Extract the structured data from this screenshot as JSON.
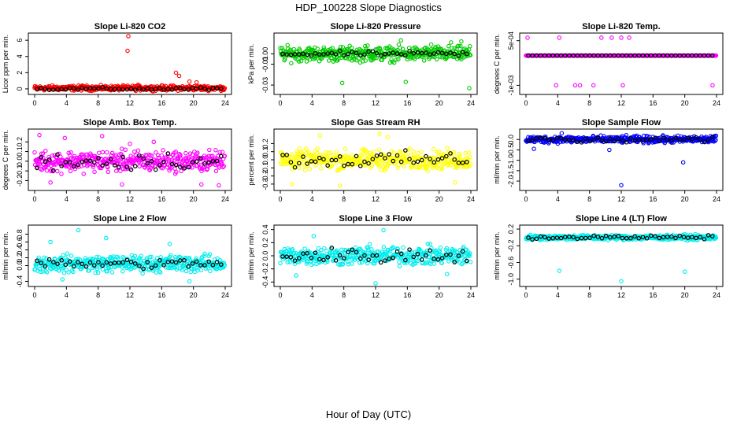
{
  "figure": {
    "title": "HDP_100228  Slope Diagnostics",
    "xlabel": "Hour of Day (UTC)"
  },
  "chart_data": [
    {
      "type": "scatter",
      "title": "Slope Li-820 CO2",
      "ylabel": "Licor ppm per min.",
      "color": "#ff0000",
      "xlim": [
        0,
        24
      ],
      "xticks": [
        0,
        4,
        8,
        12,
        16,
        20,
        24
      ],
      "ylim": [
        -0.3,
        6.5
      ],
      "yticks": [
        0,
        2,
        4,
        6
      ],
      "ytick_labels": [
        "0",
        "2",
        "4",
        "6"
      ],
      "noise": {
        "center": 0.1,
        "spread": 0.25
      },
      "highlights": [
        {
          "x": 11.8,
          "y": 6.6
        },
        {
          "x": 11.7,
          "y": 4.7
        },
        {
          "x": 17.8,
          "y": 2.0
        },
        {
          "x": 18.2,
          "y": 1.6
        },
        {
          "x": 19.5,
          "y": 0.9
        },
        {
          "x": 20.4,
          "y": 0.8
        },
        {
          "x": 13.0,
          "y": 0.5
        },
        {
          "x": 6.0,
          "y": 0.4
        }
      ],
      "black_noise": {
        "center": 0.0,
        "spread": 0.15
      }
    },
    {
      "type": "scatter",
      "title": "Slope Li-820 Pressure",
      "ylabel": "kPa per min.",
      "color": "#00cc00",
      "xlim": [
        0,
        24
      ],
      "xticks": [
        0,
        4,
        8,
        12,
        16,
        20,
        24
      ],
      "ylim": [
        -0.036,
        0.017
      ],
      "yticks": [
        0.0,
        -0.01,
        -0.03
      ],
      "ytick_labels": [
        "0.00",
        "-0.01",
        "-0.03"
      ],
      "noise": {
        "center": 0.0,
        "spread": 0.006
      },
      "highlights": [
        {
          "x": 7.8,
          "y": -0.028
        },
        {
          "x": 15.8,
          "y": -0.027
        },
        {
          "x": 23.8,
          "y": -0.033
        },
        {
          "x": 15.2,
          "y": 0.013
        },
        {
          "x": 21.5,
          "y": 0.011
        },
        {
          "x": 22.8,
          "y": 0.012
        },
        {
          "x": 19.0,
          "y": 0.009
        },
        {
          "x": 11.0,
          "y": 0.008
        }
      ],
      "black_noise": {
        "center": 0.0,
        "spread": 0.002
      }
    },
    {
      "type": "scatter",
      "title": "Slope Li-820 Temp.",
      "ylabel": "degrees C per min.",
      "color": "#ff00ff",
      "xlim": [
        0,
        24
      ],
      "xticks": [
        0,
        4,
        8,
        12,
        16,
        20,
        24
      ],
      "ylim": [
        -0.0012,
        0.00065
      ],
      "yticks": [
        0.0005,
        -0.001
      ],
      "ytick_labels": [
        "5e-04",
        "-1e-03"
      ],
      "noise": {
        "center": 0.0,
        "spread": 0.0
      },
      "highlights": [
        {
          "x": 0.2,
          "y": 0.0006
        },
        {
          "x": 4.2,
          "y": 0.0006
        },
        {
          "x": 9.5,
          "y": 0.0006
        },
        {
          "x": 10.8,
          "y": 0.0006
        },
        {
          "x": 12.0,
          "y": 0.0006
        },
        {
          "x": 13.0,
          "y": 0.0006
        },
        {
          "x": 3.8,
          "y": -0.001
        },
        {
          "x": 6.2,
          "y": -0.001
        },
        {
          "x": 6.8,
          "y": -0.001
        },
        {
          "x": 8.5,
          "y": -0.001
        },
        {
          "x": 12.2,
          "y": -0.001
        },
        {
          "x": 23.5,
          "y": -0.001
        }
      ],
      "black_noise": {
        "center": 0.0,
        "spread": 0.0
      }
    },
    {
      "type": "scatter",
      "title": "Slope Amb. Box Temp.",
      "ylabel": "degrees C per min.",
      "color": "#ff00ff",
      "xlim": [
        0,
        24
      ],
      "xticks": [
        0,
        4,
        8,
        12,
        16,
        20,
        24
      ],
      "ylim": [
        -0.27,
        0.3
      ],
      "yticks": [
        -0.2,
        -0.1,
        0.0,
        0.1,
        0.2
      ],
      "ytick_labels": [
        "-0.2",
        "-0.1",
        "0.0",
        "0.1",
        "0.2"
      ],
      "noise": {
        "center": 0.0,
        "spread": 0.09
      },
      "highlights": [
        {
          "x": 0.6,
          "y": 0.27
        },
        {
          "x": 3.8,
          "y": 0.24
        },
        {
          "x": 8.5,
          "y": 0.26
        },
        {
          "x": 12.0,
          "y": 0.18
        },
        {
          "x": 15.0,
          "y": 0.2
        },
        {
          "x": 2.0,
          "y": -0.22
        },
        {
          "x": 11.0,
          "y": -0.24
        },
        {
          "x": 21.0,
          "y": -0.24
        },
        {
          "x": 23.2,
          "y": -0.25
        }
      ],
      "black_noise": {
        "center": 0.0,
        "spread": 0.08
      }
    },
    {
      "type": "scatter",
      "title": "Slope Gas Stream RH",
      "ylabel": "percent per min.",
      "color": "#ffff00",
      "xlim": [
        0,
        24
      ],
      "xticks": [
        0,
        4,
        8,
        12,
        16,
        20,
        24
      ],
      "ylim": [
        -0.34,
        0.34
      ],
      "yticks": [
        -0.3,
        -0.2,
        -0.1,
        0.0,
        0.1,
        0.2
      ],
      "ytick_labels": [
        "-0.3",
        "-0.2",
        "-0.1",
        "0.0",
        "0.1",
        "0.2"
      ],
      "noise": {
        "center": 0.0,
        "spread": 0.1
      },
      "highlights": [
        {
          "x": 5.0,
          "y": 0.3
        },
        {
          "x": 12.5,
          "y": 0.32
        },
        {
          "x": 13.5,
          "y": 0.28
        },
        {
          "x": 1.5,
          "y": -0.3
        },
        {
          "x": 7.5,
          "y": -0.32
        },
        {
          "x": 22.0,
          "y": -0.28
        }
      ],
      "black_noise": {
        "center": 0.0,
        "spread": 0.08
      }
    },
    {
      "type": "scatter",
      "title": "Slope Sample Flow",
      "ylabel": "ml/min per min.",
      "color": "#0000ff",
      "xlim": [
        0,
        24
      ],
      "xticks": [
        0,
        4,
        8,
        12,
        16,
        20,
        24
      ],
      "ylim": [
        -2.3,
        0.35
      ],
      "yticks": [
        -2.0,
        -1.5,
        -1.0,
        -0.5,
        0.0
      ],
      "ytick_labels": [
        "-2.0",
        "-1.5",
        "-1.0",
        "-0.5",
        "0.0"
      ],
      "noise": {
        "center": 0.0,
        "spread": 0.14
      },
      "highlights": [
        {
          "x": 12.0,
          "y": -2.2
        },
        {
          "x": 19.8,
          "y": -1.1
        },
        {
          "x": 1.0,
          "y": -0.45
        },
        {
          "x": 10.5,
          "y": -0.5
        },
        {
          "x": 4.5,
          "y": 0.3
        }
      ],
      "black_noise": {
        "center": 0.0,
        "spread": 0.1
      }
    },
    {
      "type": "scatter",
      "title": "Slope Line 2 Flow",
      "ylabel": "ml/min per min.",
      "color": "#00eeee",
      "xlim": [
        0,
        24
      ],
      "xticks": [
        0,
        4,
        8,
        12,
        16,
        20,
        24
      ],
      "ylim": [
        -0.45,
        0.95
      ],
      "yticks": [
        -0.4,
        0.0,
        0.2,
        0.4,
        0.6,
        0.8
      ],
      "ytick_labels": [
        "-0.4",
        "0.0",
        "0.2",
        "0.4",
        "0.6",
        "0.8"
      ],
      "noise": {
        "center": 0.05,
        "spread": 0.18
      },
      "highlights": [
        {
          "x": 5.5,
          "y": 0.9
        },
        {
          "x": 2.0,
          "y": 0.6
        },
        {
          "x": 9.0,
          "y": 0.7
        },
        {
          "x": 17.0,
          "y": 0.55
        },
        {
          "x": 3.5,
          "y": -0.35
        },
        {
          "x": 19.5,
          "y": -0.4
        }
      ],
      "black_noise": {
        "center": 0.05,
        "spread": 0.1
      }
    },
    {
      "type": "scatter",
      "title": "Slope Line 3 Flow",
      "ylabel": "ml/min per min.",
      "color": "#00eeee",
      "xlim": [
        0,
        24
      ],
      "xticks": [
        0,
        4,
        8,
        12,
        16,
        20,
        24
      ],
      "ylim": [
        -0.42,
        0.42
      ],
      "yticks": [
        -0.4,
        -0.2,
        0.0,
        0.2,
        0.4
      ],
      "ytick_labels": [
        "-0.4",
        "-0.2",
        "0.0",
        "0.2",
        "0.4"
      ],
      "noise": {
        "center": 0.0,
        "spread": 0.12
      },
      "highlights": [
        {
          "x": 13.0,
          "y": 0.39
        },
        {
          "x": 4.2,
          "y": 0.3
        },
        {
          "x": 12.0,
          "y": -0.42
        },
        {
          "x": 2.0,
          "y": -0.3
        },
        {
          "x": 21.0,
          "y": -0.28
        }
      ],
      "black_noise": {
        "center": 0.0,
        "spread": 0.1
      }
    },
    {
      "type": "scatter",
      "title": "Slope Line 4 (LT) Flow",
      "ylabel": "ml/min per min.",
      "color": "#00eeee",
      "xlim": [
        0,
        24
      ],
      "xticks": [
        0,
        4,
        8,
        12,
        16,
        20,
        24
      ],
      "ylim": [
        -1.1,
        0.22
      ],
      "yticks": [
        -1.0,
        -0.6,
        -0.2,
        0.2
      ],
      "ytick_labels": [
        "-1.0",
        "-0.6",
        "-0.2",
        "0.2"
      ],
      "noise": {
        "center": 0.0,
        "spread": 0.05
      },
      "highlights": [
        {
          "x": 4.2,
          "y": -0.8
        },
        {
          "x": 12.0,
          "y": -1.05
        },
        {
          "x": 20.0,
          "y": -0.82
        }
      ],
      "black_noise": {
        "center": 0.0,
        "spread": 0.04
      }
    }
  ]
}
